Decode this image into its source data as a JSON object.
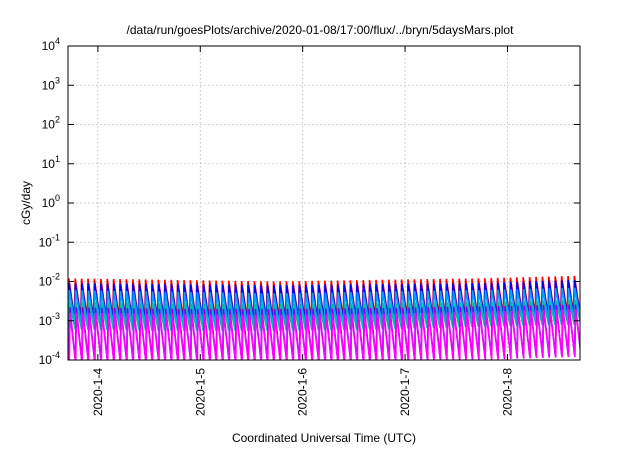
{
  "chart_data": {
    "type": "line",
    "title": "/data/run/goesPlots/archive/2020-01-08/17:00/flux/../bryn/5daysMars.plot",
    "xlabel": "Coordinated Universal Time (UTC)",
    "ylabel": "cGy/day",
    "yscale": "log",
    "ylim": [
      0.0001,
      10000
    ],
    "y_ticks": [
      {
        "value": 0.0001,
        "base": "10",
        "exp": "-4"
      },
      {
        "value": 0.001,
        "base": "10",
        "exp": "-3"
      },
      {
        "value": 0.01,
        "base": "10",
        "exp": "-2"
      },
      {
        "value": 0.1,
        "base": "10",
        "exp": "-1"
      },
      {
        "value": 1,
        "base": "10",
        "exp": "0"
      },
      {
        "value": 10,
        "base": "10",
        "exp": "1"
      },
      {
        "value": 100,
        "base": "10",
        "exp": "2"
      },
      {
        "value": 1000,
        "base": "10",
        "exp": "3"
      },
      {
        "value": 10000,
        "base": "10",
        "exp": "4"
      }
    ],
    "xlim": [
      "2020-01-03T17:00",
      "2020-01-08T17:00"
    ],
    "x_ticks": [
      {
        "value": "2020-01-04T00:00",
        "label": "2020-1-4"
      },
      {
        "value": "2020-01-05T00:00",
        "label": "2020-1-5"
      },
      {
        "value": "2020-01-06T00:00",
        "label": "2020-1-6"
      },
      {
        "value": "2020-01-07T00:00",
        "label": "2020-1-7"
      },
      {
        "value": "2020-01-08T00:00",
        "label": "2020-1-8"
      }
    ],
    "grid": true,
    "series": [
      {
        "color": "#ff0000",
        "peaks": [
          0.012,
          0.011,
          0.01,
          0.011,
          0.012,
          0.014
        ],
        "troughs": [
          0.0012,
          0.0011,
          0.0011,
          0.0012,
          0.0013,
          0.0015
        ]
      },
      {
        "color": "#0000ff",
        "peaks": [
          0.009,
          0.0085,
          0.008,
          0.0085,
          0.009,
          0.011
        ],
        "troughs": [
          0.001,
          0.0009,
          0.0009,
          0.001,
          0.0011,
          0.0012
        ]
      },
      {
        "color": "#00a0ff",
        "peaks": [
          0.006,
          0.0055,
          0.005,
          0.0055,
          0.006,
          0.007
        ],
        "troughs": [
          0.0008,
          0.0007,
          0.0007,
          0.0008,
          0.0009,
          0.001
        ]
      },
      {
        "color": "#00c0a0",
        "peaks": [
          0.003,
          0.0028,
          0.0027,
          0.0028,
          0.003,
          0.0035
        ],
        "troughs": [
          0.0006,
          0.00055,
          0.00055,
          0.0006,
          0.0007,
          0.0008
        ]
      },
      {
        "color": "#8000ff",
        "peaks": [
          0.0022,
          0.002,
          0.002,
          0.0021,
          0.0023,
          0.0026
        ],
        "troughs": [
          0.0001,
          0.0001,
          0.0001,
          0.0001,
          0.00012,
          0.00013
        ]
      },
      {
        "color": "#ff00ff",
        "peaks": [
          0.0016,
          0.0015,
          0.0014,
          0.0015,
          0.0017,
          0.002
        ],
        "troughs": [
          8e-05,
          8e-05,
          8e-05,
          8e-05,
          0.0001,
          0.00012
        ]
      }
    ]
  }
}
